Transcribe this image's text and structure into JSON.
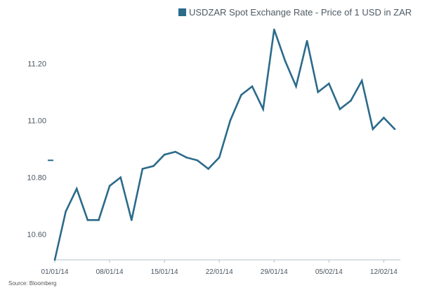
{
  "chart_data": {
    "type": "line",
    "title": "",
    "xlabel": "",
    "ylabel": "",
    "series": [
      {
        "name": "USDZAR Spot Exchange Rate - Price of 1 USD in ZAR",
        "color": "#2c6b8a",
        "x": [
          "01/01/14",
          "02/01/14",
          "03/01/14",
          "06/01/14",
          "07/01/14",
          "08/01/14",
          "09/01/14",
          "10/01/14",
          "13/01/14",
          "14/01/14",
          "15/01/14",
          "16/01/14",
          "17/01/14",
          "20/01/14",
          "21/01/14",
          "22/01/14",
          "23/01/14",
          "24/01/14",
          "27/01/14",
          "28/01/14",
          "29/01/14",
          "30/01/14",
          "31/01/14",
          "03/02/14",
          "04/02/14",
          "05/02/14",
          "06/02/14",
          "07/02/14",
          "10/02/14",
          "11/02/14",
          "12/02/14",
          "13/02/14"
        ],
        "values": [
          10.51,
          10.68,
          10.76,
          10.65,
          10.65,
          10.77,
          10.8,
          10.65,
          10.83,
          10.84,
          10.88,
          10.89,
          10.87,
          10.86,
          10.83,
          10.87,
          11.0,
          11.09,
          11.12,
          11.04,
          11.32,
          11.21,
          11.12,
          11.28,
          11.1,
          11.13,
          11.04,
          11.07,
          11.14,
          10.97,
          11.01,
          10.97
        ]
      }
    ],
    "x_ticks": [
      "01/01/14",
      "08/01/14",
      "15/01/14",
      "22/01/14",
      "29/01/14",
      "05/02/14",
      "12/02/14"
    ],
    "y_ticks": [
      "10.60",
      "10.80",
      "11.00",
      "11.20"
    ],
    "y_tick_values": [
      10.6,
      10.8,
      11.0,
      11.2
    ],
    "ylim": [
      10.51,
      11.33
    ],
    "grid": false,
    "legend_position": "top-center",
    "source": "Source: Bloomberg",
    "y_marker": 10.86
  },
  "legend": {
    "label": "USDZAR Spot Exchange Rate - Price of 1 USD in ZAR"
  },
  "footer": {
    "source": "Source: Bloomberg"
  }
}
